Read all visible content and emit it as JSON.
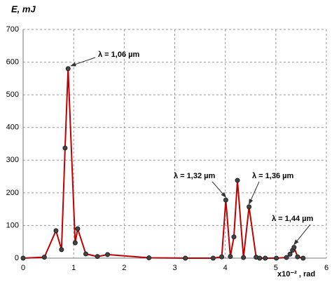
{
  "chart_data": {
    "type": "line",
    "ylabel": "E, mJ",
    "xlabel": "x10⁻² , rad",
    "x": [
      0,
      0.42,
      0.65,
      0.76,
      0.83,
      0.89,
      1.03,
      1.08,
      1.24,
      1.47,
      1.67,
      2.49,
      3.21,
      3.76,
      3.93,
      4.01,
      4.1,
      4.17,
      4.24,
      4.36,
      4.47,
      4.61,
      4.68,
      4.79,
      5.01,
      5.21,
      5.28,
      5.33,
      5.36,
      5.43,
      5.54
    ],
    "series": [
      {
        "color": "#c00000",
        "values": [
          0,
          3,
          84,
          26,
          337,
          580,
          47,
          90,
          13,
          5,
          11,
          1,
          0,
          0,
          4,
          178,
          5,
          65,
          238,
          2,
          157,
          3,
          0,
          0,
          0,
          2,
          12,
          24,
          33,
          4,
          0
        ]
      }
    ],
    "xlim": [
      0,
      6
    ],
    "xticks": [
      0,
      1,
      2,
      3,
      4,
      5,
      6
    ],
    "ylim": [
      0,
      700
    ],
    "yticks": [
      0,
      100,
      200,
      300,
      400,
      500,
      600,
      700
    ],
    "grid": true,
    "annotations": [
      "λ = 1,06  µm",
      "λ = 1,32  µm",
      "λ = 1,36  µm",
      "λ = 1,44  µm"
    ]
  }
}
